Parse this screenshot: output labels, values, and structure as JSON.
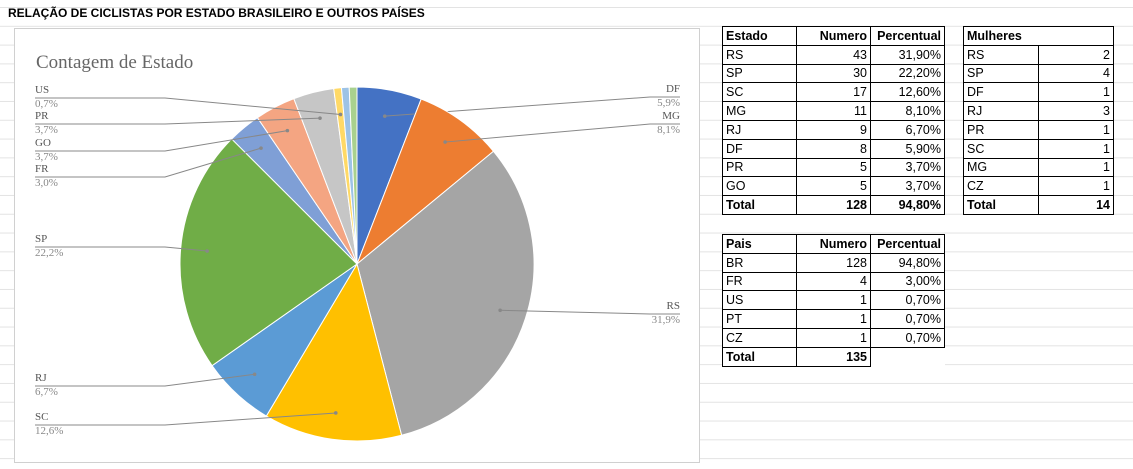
{
  "title": "RELAÇÃO DE CICLISTAS POR ESTADO BRASILEIRO E OUTROS PAÍSES",
  "chart_data": {
    "type": "pie",
    "title": "Contagem de Estado",
    "categories": [
      "DF",
      "MG",
      "RS",
      "SC",
      "RJ",
      "SP",
      "FR",
      "GO",
      "PR",
      "US",
      null,
      null
    ],
    "values": [
      5.9,
      8.1,
      31.9,
      12.6,
      6.7,
      22.2,
      3.0,
      3.7,
      3.7,
      0.7,
      0.7,
      0.7
    ],
    "value_labels": [
      "5,9%",
      "8,1%",
      "31,9%",
      "12,6%",
      "6,7%",
      "22,2%",
      "3,0%",
      "3,7%",
      "3,7%",
      "0,7%",
      null,
      null
    ],
    "colors": [
      "#4472c4",
      "#ed7d31",
      "#a5a5a5",
      "#ffc000",
      "#5b9bd5",
      "#70ad47",
      "#7f9fd6",
      "#f4a582",
      "#c6c6c6",
      "#ffd966",
      "#9dc3e6",
      "#a9d18e"
    ]
  },
  "tables": [
    {
      "header": [
        "Estado",
        "Numero",
        "Percentual"
      ],
      "rows": [
        [
          "RS",
          "43",
          "31,90%"
        ],
        [
          "SP",
          "30",
          "22,20%"
        ],
        [
          "SC",
          "17",
          "12,60%"
        ],
        [
          "MG",
          "11",
          "8,10%"
        ],
        [
          "RJ",
          "9",
          "6,70%"
        ],
        [
          "DF",
          "8",
          "5,90%"
        ],
        [
          "PR",
          "5",
          "3,70%"
        ],
        [
          "GO",
          "5",
          "3,70%"
        ],
        [
          "Total",
          "128",
          "94,80%"
        ]
      ]
    },
    {
      "header": [
        "Mulheres"
      ],
      "rows": [
        [
          "RS",
          "2"
        ],
        [
          "SP",
          "4"
        ],
        [
          "DF",
          "1"
        ],
        [
          "RJ",
          "3"
        ],
        [
          "PR",
          "1"
        ],
        [
          "SC",
          "1"
        ],
        [
          "MG",
          "1"
        ],
        [
          "CZ",
          "1"
        ],
        [
          "Total",
          "14"
        ]
      ]
    },
    {
      "header": [
        "Pais",
        "Numero",
        "Percentual"
      ],
      "rows": [
        [
          "BR",
          "128",
          "94,80%"
        ],
        [
          "FR",
          "4",
          "3,00%"
        ],
        [
          "US",
          "1",
          "0,70%"
        ],
        [
          "PT",
          "1",
          "0,70%"
        ],
        [
          "CZ",
          "1",
          "0,70%"
        ],
        [
          "Total",
          "135"
        ]
      ]
    }
  ]
}
